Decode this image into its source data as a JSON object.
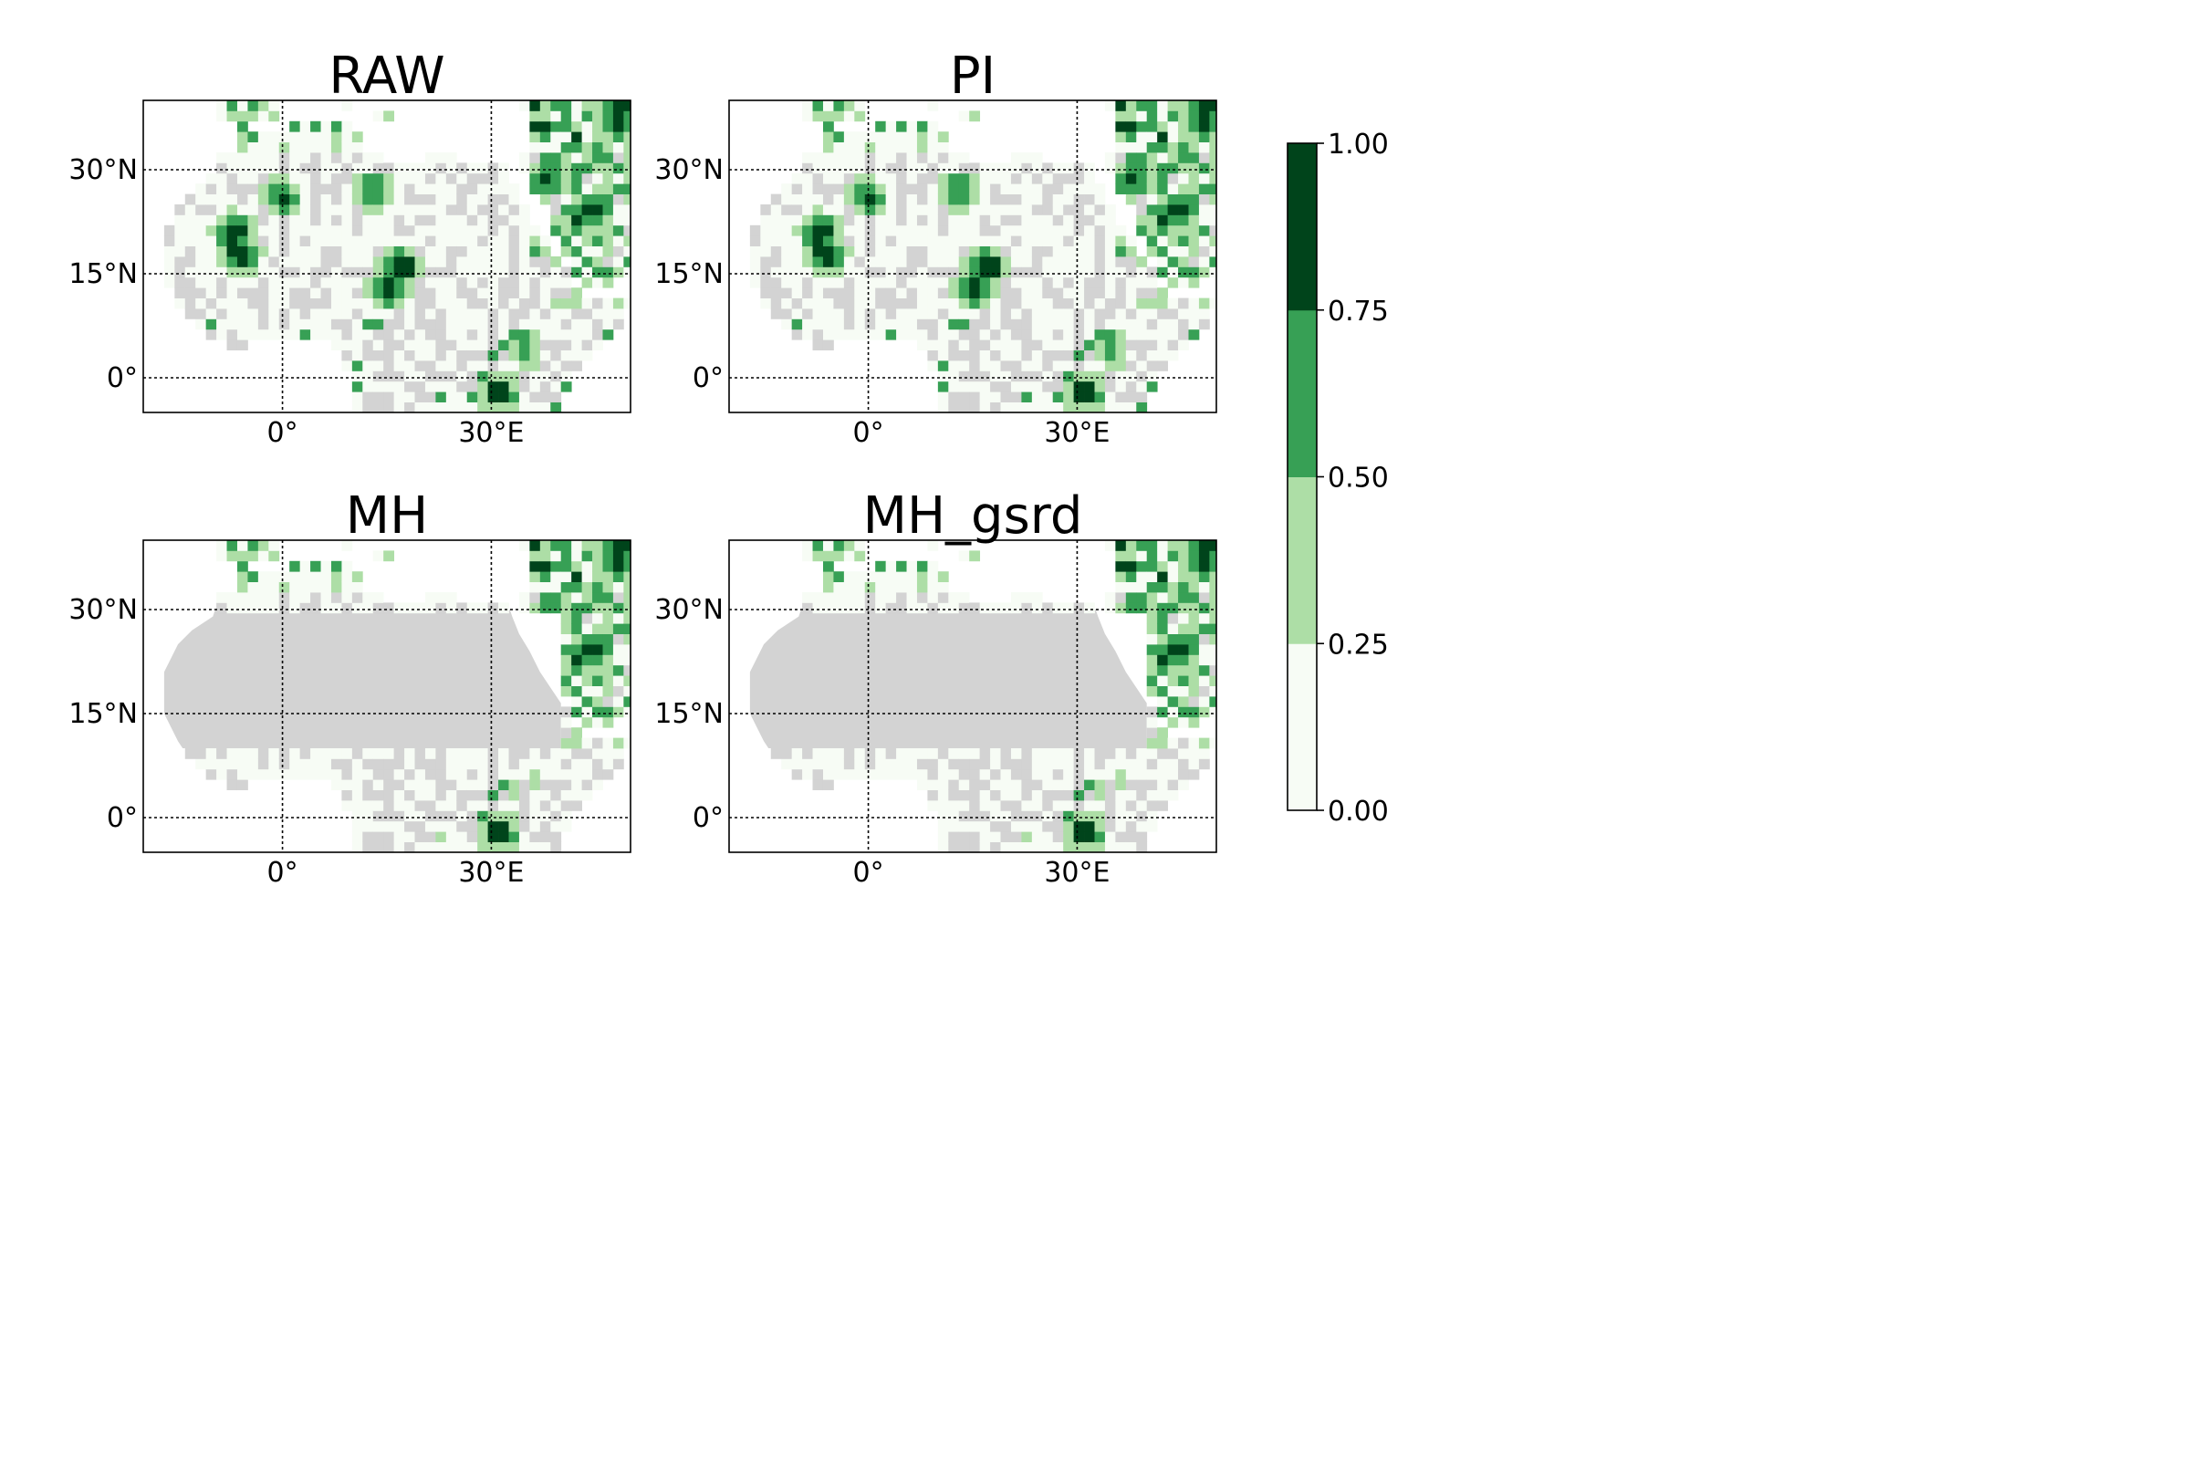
{
  "figure": {
    "panels": [
      {
        "title": "RAW",
        "mode": "full"
      },
      {
        "title": "PI",
        "mode": "full"
      },
      {
        "title": "MH",
        "mode": "masked"
      },
      {
        "title": "MH_gsrd",
        "mode": "masked"
      }
    ],
    "map_extent": {
      "lon": [
        -20,
        50
      ],
      "lat": [
        -5,
        40
      ]
    },
    "gridlines": {
      "lons": [
        0,
        30
      ],
      "lats": [
        0,
        15,
        30
      ],
      "style": "dotted"
    },
    "lat_tick_labels": [
      "0°",
      "15°N",
      "30°N"
    ],
    "lon_tick_labels": [
      "0°",
      "30°E"
    ],
    "colorbar": {
      "tick_labels": [
        "0.00",
        "0.25",
        "0.50",
        "0.75",
        "1.00"
      ],
      "ticks": [
        0.0,
        0.25,
        0.5,
        0.75,
        1.0
      ],
      "colors": [
        "#f7fcf5",
        "#addea6",
        "#37a055",
        "#00441b"
      ]
    },
    "colors": {
      "land_nodata": "#d3d3d3",
      "ocean": "#ffffff"
    }
  },
  "chart_data": {
    "type": "heatmap",
    "colormap": "Greens",
    "value_range": [
      0,
      1
    ],
    "class_bounds": [
      0,
      0.25,
      0.5,
      0.75,
      1.0
    ],
    "lon_range": [
      -20,
      50
    ],
    "lat_range": [
      -5,
      40
    ],
    "grid_resolution_deg": 1.5,
    "panels": [
      "RAW",
      "PI",
      "MH",
      "MH_gsrd"
    ],
    "hotspots": [
      {
        "lon": -7,
        "lat": 21,
        "value": 0.9
      },
      {
        "lon": -6,
        "lat": 18,
        "value": 0.9
      },
      {
        "lon": 0,
        "lat": 26,
        "value": 0.8
      },
      {
        "lon": 13,
        "lat": 27,
        "value": 0.8
      },
      {
        "lon": 17,
        "lat": 16,
        "value": 0.95
      },
      {
        "lon": 15,
        "lat": 13,
        "value": 0.9
      },
      {
        "lon": 31,
        "lat": -2,
        "value": 0.85
      },
      {
        "lon": 35,
        "lat": 4,
        "value": 0.6
      },
      {
        "lon": 38,
        "lat": 29,
        "value": 0.8
      },
      {
        "lon": 44,
        "lat": 24,
        "value": 0.8
      },
      {
        "lon": 48,
        "lat": 37,
        "value": 0.9
      },
      {
        "lon": 49,
        "lat": 40,
        "value": 0.9
      }
    ],
    "masked_lat_band_MH": [
      10,
      30
    ],
    "masked_lon_max_MH": 40
  }
}
